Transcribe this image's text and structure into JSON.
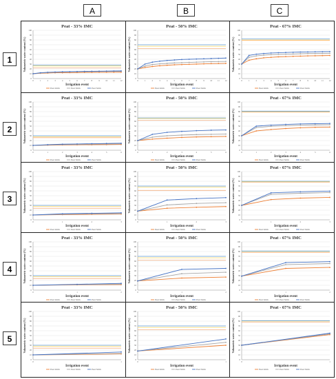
{
  "columns": [
    "A",
    "B",
    "C"
  ],
  "rows": [
    "1",
    "2",
    "3",
    "4",
    "5"
  ],
  "colors": {
    "peat_2mm": "#ed7d31",
    "peat_3mm": "#a5a5a5",
    "peat_5mm": "#4472c4",
    "threshold_blue": "#5b9bd5",
    "threshold_orange": "#f4b183",
    "threshold_gray": "#bfbfbf",
    "threshold_yellow": "#ffd966"
  },
  "legend_labels": [
    "Peat 2mm",
    "Peat 3mm",
    "Peat 5mm"
  ],
  "chart_data": [
    {
      "row": 1,
      "col": "A",
      "type": "line",
      "title": "Peat - 33% IMC",
      "xlabel": "Irrigation event",
      "ylabel": "Volumetric water content (%)",
      "ylim": [
        0,
        100
      ],
      "yticks": [
        0,
        10,
        20,
        30,
        40,
        50,
        60,
        70,
        80,
        90,
        100
      ],
      "x": [
        0,
        1,
        2,
        3,
        4,
        5,
        6,
        7,
        8,
        9,
        10,
        11,
        12
      ],
      "series": [
        {
          "name": "Peat 2mm",
          "values": [
            10,
            11,
            11.5,
            12,
            12,
            12.3,
            12.5,
            12.7,
            12.8,
            13,
            13,
            13.1,
            13.2
          ]
        },
        {
          "name": "Peat 3mm",
          "values": [
            10,
            11.5,
            12.5,
            13,
            13.5,
            13.8,
            14,
            14.2,
            14.4,
            14.6,
            14.8,
            15,
            15
          ]
        },
        {
          "name": "Peat 5mm",
          "values": [
            10,
            12,
            13,
            13.5,
            14,
            14.3,
            14.6,
            14.9,
            15.1,
            15.3,
            15.5,
            15.7,
            15.9
          ]
        }
      ],
      "thresholds": [
        22,
        26,
        28
      ]
    },
    {
      "row": 1,
      "col": "B",
      "type": "line",
      "title": "Peat - 50% IMC",
      "xlabel": "Irrigation event",
      "ylabel": "Volumetric water content (%)",
      "ylim": [
        0,
        100
      ],
      "yticks": [
        0,
        10,
        20,
        30,
        40,
        50,
        60,
        70,
        80,
        90,
        100
      ],
      "x": [
        0,
        1,
        2,
        3,
        4,
        5,
        6,
        7,
        8,
        9,
        10,
        11,
        12
      ],
      "series": [
        {
          "name": "Peat 2mm",
          "values": [
            20,
            23,
            25,
            26.5,
            27.5,
            28.5,
            29,
            29.5,
            30,
            30.5,
            31,
            31.2,
            31.5
          ]
        },
        {
          "name": "Peat 3mm",
          "values": [
            20,
            26,
            29,
            30.5,
            31.5,
            32.5,
            33,
            33.5,
            34,
            34.5,
            35,
            35.2,
            35.5
          ]
        },
        {
          "name": "Peat 5mm",
          "values": [
            20,
            30,
            34,
            36,
            37.5,
            38.5,
            39.5,
            40,
            40.5,
            41,
            41.5,
            42,
            42.5
          ]
        }
      ],
      "thresholds": [
        62,
        67,
        70
      ]
    },
    {
      "row": 1,
      "col": "C",
      "type": "line",
      "title": "Peat - 67% IMC",
      "xlabel": "Irrigation event",
      "ylabel": "Volumetric water content (%)",
      "ylim": [
        0,
        100
      ],
      "yticks": [
        0,
        10,
        20,
        30,
        40,
        50,
        60,
        70,
        80,
        90,
        100
      ],
      "x": [
        0,
        1,
        2,
        3,
        4,
        5,
        6,
        7,
        8,
        9,
        10,
        11,
        12
      ],
      "series": [
        {
          "name": "Peat 2mm",
          "values": [
            30,
            38,
            41,
            43,
            44,
            45,
            45.5,
            46,
            46.5,
            47,
            47.2,
            47.5,
            47.8
          ]
        },
        {
          "name": "Peat 3mm",
          "values": [
            30,
            44,
            47,
            48.5,
            49.5,
            50,
            50.5,
            51,
            51.5,
            52,
            52,
            52.2,
            52.5
          ]
        },
        {
          "name": "Peat 5mm",
          "values": [
            30,
            48,
            50.5,
            52,
            53,
            53.5,
            54,
            54.5,
            55,
            55.2,
            55.5,
            55.7,
            56
          ]
        }
      ],
      "thresholds": [
        79,
        80,
        82
      ]
    },
    {
      "row": 2,
      "col": "A",
      "type": "line",
      "title": "Peat - 33% IMC",
      "xlabel": "Irrigation event",
      "ylabel": "Volumetric water content (%)",
      "ylim": [
        0,
        100
      ],
      "yticks": [
        0,
        10,
        20,
        30,
        40,
        50,
        60,
        70,
        80,
        90,
        100
      ],
      "x": [
        0,
        1,
        2,
        3,
        4,
        5,
        6
      ],
      "series": [
        {
          "name": "Peat 2mm",
          "values": [
            10,
            10.5,
            11,
            11.3,
            11.5,
            11.7,
            12
          ]
        },
        {
          "name": "Peat 3mm",
          "values": [
            10,
            11,
            11.8,
            12.3,
            12.6,
            12.9,
            13.2
          ]
        },
        {
          "name": "Peat 5mm",
          "values": [
            10,
            11.5,
            12.5,
            13,
            13.5,
            14,
            14.5
          ]
        }
      ],
      "thresholds": [
        26,
        28,
        30
      ]
    },
    {
      "row": 2,
      "col": "B",
      "type": "line",
      "title": "Peat - 50% IMC",
      "xlabel": "Irrigation event",
      "ylabel": "Volumetric water content (%)",
      "ylim": [
        0,
        100
      ],
      "yticks": [
        0,
        10,
        20,
        30,
        40,
        50,
        60,
        70,
        80,
        90,
        100
      ],
      "x": [
        0,
        1,
        2,
        3,
        4,
        5,
        6
      ],
      "series": [
        {
          "name": "Peat 2mm",
          "values": [
            20,
            23,
            25,
            26.5,
            27.5,
            28,
            28.5
          ]
        },
        {
          "name": "Peat 3mm",
          "values": [
            20,
            27,
            30,
            31.5,
            32.5,
            33,
            33.5
          ]
        },
        {
          "name": "Peat 5mm",
          "values": [
            20,
            33,
            37,
            39,
            40.5,
            41.5,
            42
          ]
        }
      ],
      "thresholds": [
        62,
        66,
        67
      ]
    },
    {
      "row": 2,
      "col": "C",
      "type": "line",
      "title": "Peat - 67% IMC",
      "xlabel": "Irrigation event",
      "ylabel": "Volumetric water content (%)",
      "ylim": [
        0,
        100
      ],
      "yticks": [
        0,
        10,
        20,
        30,
        40,
        50,
        60,
        70,
        80,
        90,
        100
      ],
      "x": [
        0,
        1,
        2,
        3,
        4,
        5,
        6
      ],
      "series": [
        {
          "name": "Peat 2mm",
          "values": [
            30,
            40,
            43,
            45,
            46.5,
            47.5,
            48
          ]
        },
        {
          "name": "Peat 3mm",
          "values": [
            30,
            47,
            49.5,
            51,
            52,
            52.5,
            53
          ]
        },
        {
          "name": "Peat 5mm",
          "values": [
            30,
            50,
            52,
            53.5,
            54.5,
            55,
            55.5
          ]
        }
      ],
      "thresholds": [
        79,
        80,
        81
      ]
    },
    {
      "row": 3,
      "col": "A",
      "type": "line",
      "title": "Peat - 33% IMC",
      "xlabel": "Irrigation event",
      "ylabel": "Volumetric water content (%)",
      "ylim": [
        0,
        100
      ],
      "yticks": [
        0,
        10,
        20,
        30,
        40,
        50,
        60,
        70,
        80,
        90,
        100
      ],
      "x": [
        0,
        1,
        2,
        3
      ],
      "series": [
        {
          "name": "Peat 2mm",
          "values": [
            10,
            10.8,
            11.5,
            12
          ]
        },
        {
          "name": "Peat 3mm",
          "values": [
            10,
            11.5,
            12.5,
            13
          ]
        },
        {
          "name": "Peat 5mm",
          "values": [
            10,
            12.5,
            13.5,
            14.5
          ]
        }
      ],
      "thresholds": [
        24,
        28,
        30
      ]
    },
    {
      "row": 3,
      "col": "B",
      "type": "line",
      "title": "Peat - 50% IMC",
      "xlabel": "Irrigation event",
      "ylabel": "Volumetric water content (%)",
      "ylim": [
        0,
        100
      ],
      "yticks": [
        0,
        10,
        20,
        30,
        40,
        50,
        60,
        70,
        80,
        90,
        100
      ],
      "x": [
        0,
        1,
        2,
        3
      ],
      "series": [
        {
          "name": "Peat 2mm",
          "values": [
            18,
            24,
            26,
            27.5
          ]
        },
        {
          "name": "Peat 3mm",
          "values": [
            18,
            31,
            34,
            35.5
          ]
        },
        {
          "name": "Peat 5mm",
          "values": [
            18,
            41,
            44,
            46
          ]
        }
      ],
      "thresholds": [
        61,
        68,
        70
      ]
    },
    {
      "row": 3,
      "col": "C",
      "type": "line",
      "title": "Peat - 67% IMC",
      "xlabel": "Irrigation event",
      "ylabel": "Volumetric water content (%)",
      "ylim": [
        0,
        100
      ],
      "yticks": [
        0,
        10,
        20,
        30,
        40,
        50,
        60,
        70,
        80,
        90,
        100
      ],
      "x": [
        0,
        1,
        2,
        3
      ],
      "series": [
        {
          "name": "Peat 2mm",
          "values": [
            30,
            42,
            45,
            46.5
          ]
        },
        {
          "name": "Peat 3mm",
          "values": [
            30,
            53,
            55,
            56.5
          ]
        },
        {
          "name": "Peat 5mm",
          "values": [
            30,
            56,
            58,
            59.5
          ]
        }
      ],
      "thresholds": [
        78,
        79,
        80
      ]
    },
    {
      "row": 4,
      "col": "A",
      "type": "line",
      "title": "Peat - 33% IMC",
      "xlabel": "Irrigation event",
      "ylabel": "Volumetric water content (%)",
      "ylim": [
        0,
        100
      ],
      "yticks": [
        0,
        10,
        20,
        30,
        40,
        50,
        60,
        70,
        80,
        90,
        100
      ],
      "x": [
        0,
        1,
        2
      ],
      "series": [
        {
          "name": "Peat 2mm",
          "values": [
            10,
            11,
            11.5
          ]
        },
        {
          "name": "Peat 3mm",
          "values": [
            10,
            11.5,
            12.5
          ]
        },
        {
          "name": "Peat 5mm",
          "values": [
            10,
            12,
            14
          ]
        }
      ],
      "thresholds": [
        24,
        28,
        30
      ]
    },
    {
      "row": 4,
      "col": "B",
      "type": "line",
      "title": "Peat - 50% IMC",
      "xlabel": "Irrigation event",
      "ylabel": "Volumetric water content (%)",
      "ylim": [
        0,
        100
      ],
      "yticks": [
        0,
        10,
        20,
        30,
        40,
        50,
        60,
        70,
        80,
        90,
        100
      ],
      "x": [
        0,
        1,
        2
      ],
      "series": [
        {
          "name": "Peat 2mm",
          "values": [
            19,
            25,
            27
          ]
        },
        {
          "name": "Peat 3mm",
          "values": [
            19,
            34,
            37
          ]
        },
        {
          "name": "Peat 5mm",
          "values": [
            19,
            43,
            45
          ]
        }
      ],
      "thresholds": [
        62,
        67,
        70
      ]
    },
    {
      "row": 4,
      "col": "C",
      "type": "line",
      "title": "Peat - 67% IMC",
      "xlabel": "Irrigation event",
      "ylabel": "Volumetric water content (%)",
      "ylim": [
        0,
        100
      ],
      "yticks": [
        0,
        10,
        20,
        30,
        40,
        50,
        60,
        70,
        80,
        90,
        100
      ],
      "x": [
        0,
        1,
        2
      ],
      "series": [
        {
          "name": "Peat 2mm",
          "values": [
            29,
            45,
            47
          ]
        },
        {
          "name": "Peat 3mm",
          "values": [
            29,
            53,
            55
          ]
        },
        {
          "name": "Peat 5mm",
          "values": [
            29,
            57,
            59
          ]
        }
      ],
      "thresholds": [
        78,
        80,
        81
      ]
    },
    {
      "row": 5,
      "col": "A",
      "type": "line",
      "title": "Peat - 33% IMC",
      "xlabel": "Irrigation event",
      "ylabel": "Volumetric water content (%)",
      "ylim": [
        0,
        100
      ],
      "yticks": [
        0,
        10,
        20,
        30,
        40,
        50,
        60,
        70,
        80,
        90,
        100
      ],
      "x": [
        0,
        1
      ],
      "series": [
        {
          "name": "Peat 2mm",
          "values": [
            10,
            12
          ]
        },
        {
          "name": "Peat 3mm",
          "values": [
            10,
            13
          ]
        },
        {
          "name": "Peat 5mm",
          "values": [
            10,
            16
          ]
        }
      ],
      "thresholds": [
        24,
        28,
        30
      ]
    },
    {
      "row": 5,
      "col": "B",
      "type": "line",
      "title": "Peat - 50% IMC",
      "xlabel": "Irrigation event",
      "ylabel": "Volumetric water content (%)",
      "ylim": [
        0,
        100
      ],
      "yticks": [
        0,
        10,
        20,
        30,
        40,
        50,
        60,
        70,
        80,
        90,
        100
      ],
      "x": [
        0,
        1
      ],
      "series": [
        {
          "name": "Peat 2mm",
          "values": [
            18,
            30
          ]
        },
        {
          "name": "Peat 3mm",
          "values": [
            18,
            36
          ]
        },
        {
          "name": "Peat 5mm",
          "values": [
            18,
            43
          ]
        }
      ],
      "thresholds": [
        62,
        67,
        70
      ]
    },
    {
      "row": 5,
      "col": "C",
      "type": "line",
      "title": "Peat - 67% IMC",
      "xlabel": "Irrigation event",
      "ylabel": "Volumetric water content (%)",
      "ylim": [
        0,
        100
      ],
      "yticks": [
        0,
        10,
        20,
        30,
        40,
        50,
        60,
        70,
        80,
        90,
        100
      ],
      "x": [
        0,
        1
      ],
      "series": [
        {
          "name": "Peat 2mm",
          "values": [
            30,
            52
          ]
        },
        {
          "name": "Peat 3mm",
          "values": [
            30,
            53.5
          ]
        },
        {
          "name": "Peat 5mm",
          "values": [
            30,
            55
          ]
        }
      ],
      "thresholds": [
        78,
        80,
        81
      ]
    }
  ]
}
